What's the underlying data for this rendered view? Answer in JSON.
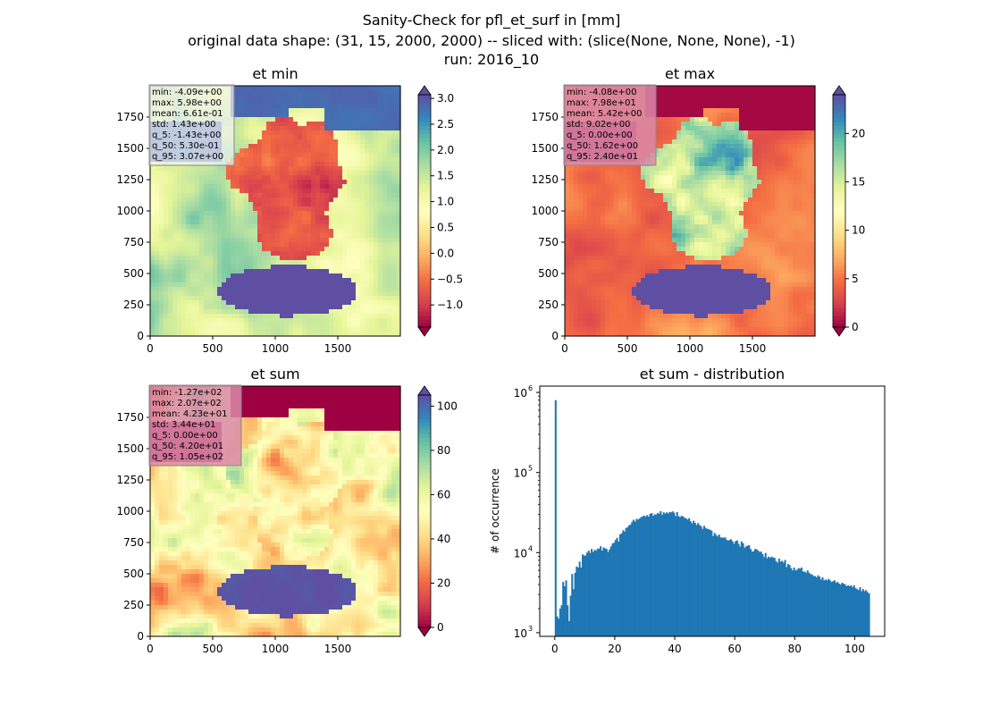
{
  "figure": {
    "title_lines": [
      "Sanity-Check for pfl_et_surf in [mm]",
      "original data shape: (31, 15, 2000, 2000) -- sliced with: (slice(None, None, None), -1)",
      "run: 2016_10"
    ]
  },
  "colors": {
    "spectral": [
      "#9e0142",
      "#d53e4f",
      "#f46d43",
      "#fdae61",
      "#fee08b",
      "#ffffbf",
      "#e6f598",
      "#abdda4",
      "#66c2a5",
      "#3288bd",
      "#5e4fa2"
    ],
    "hist_bar": "#1f77b4",
    "stats_box_min": "#f4f4f4",
    "stats_box_pink": "#d98aa8"
  },
  "chart_data": [
    {
      "type": "heatmap",
      "title": "et min",
      "x_ticks": [
        0,
        500,
        1000,
        1500
      ],
      "y_ticks": [
        0,
        250,
        500,
        750,
        1000,
        1250,
        1500,
        1750
      ],
      "xlim": [
        0,
        2000
      ],
      "ylim": [
        0,
        2000
      ],
      "colorbar": {
        "vmin": -1.43,
        "vmax": 3.07,
        "ticks": [
          -1.0,
          -0.5,
          0.0,
          0.5,
          1.0,
          1.5,
          2.0,
          2.5,
          3.0
        ],
        "tick_labels": [
          "−1.0",
          "−0.5",
          "0.0",
          "0.5",
          "1.0",
          "1.5",
          "2.0",
          "2.5",
          "3.0"
        ],
        "extend": "both"
      },
      "stats": [
        "min: -4.09e+00",
        "max: 5.98e+00",
        "mean: 6.61e-01",
        "std: 1.43e+00",
        "q_5: -1.43e+00",
        "q_50: 5.30e-01",
        "q_95: 3.07e+00"
      ]
    },
    {
      "type": "heatmap",
      "title": "et max",
      "x_ticks": [
        0,
        500,
        1000,
        1500
      ],
      "y_ticks": [
        0,
        250,
        500,
        750,
        1000,
        1250,
        1500,
        1750
      ],
      "xlim": [
        0,
        2000
      ],
      "ylim": [
        0,
        2000
      ],
      "colorbar": {
        "vmin": 0,
        "vmax": 24,
        "ticks": [
          0,
          5,
          10,
          15,
          20
        ],
        "tick_labels": [
          "0",
          "5",
          "10",
          "15",
          "20"
        ],
        "extend": "both"
      },
      "stats": [
        "min: -4.08e+00",
        "max: 7.98e+01",
        "mean: 5.42e+00",
        "std: 9.02e+00",
        "q_5: 0.00e+00",
        "q_50: 1.62e+00",
        "q_95: 2.40e+01"
      ]
    },
    {
      "type": "heatmap",
      "title": "et sum",
      "x_ticks": [
        0,
        500,
        1000,
        1500
      ],
      "y_ticks": [
        0,
        250,
        500,
        750,
        1000,
        1250,
        1500,
        1750
      ],
      "xlim": [
        0,
        2000
      ],
      "ylim": [
        0,
        2000
      ],
      "colorbar": {
        "vmin": 0,
        "vmax": 105,
        "ticks": [
          0,
          20,
          40,
          60,
          80,
          100
        ],
        "tick_labels": [
          "0",
          "20",
          "40",
          "60",
          "80",
          "100"
        ],
        "extend": "both"
      },
      "stats": [
        "min: -1.27e+02",
        "max: 2.07e+02",
        "mean: 4.23e+01",
        "std: 3.44e+01",
        "q_5: 0.00e+00",
        "q_50: 4.20e+01",
        "q_95: 1.05e+02"
      ]
    },
    {
      "type": "bar",
      "title": "et sum - distribution",
      "ylabel": "# of occurrence",
      "yscale": "log",
      "xlim": [
        -5,
        110
      ],
      "ylim": [
        900,
        1200000
      ],
      "x_ticks": [
        0,
        20,
        40,
        60,
        80,
        100
      ],
      "y_ticks": [
        1000,
        10000,
        100000,
        1000000
      ],
      "y_tick_labels": [
        {
          "base": "10",
          "exp": "3"
        },
        {
          "base": "10",
          "exp": "4"
        },
        {
          "base": "10",
          "exp": "5"
        },
        {
          "base": "10",
          "exp": "6"
        }
      ],
      "bin_width": 0.525,
      "bins_x": [
        0.0,
        0.5,
        1.0,
        1.5,
        2.0,
        2.5,
        3.0,
        3.5,
        4.0,
        4.5,
        5.0,
        5.5,
        6.0,
        6.5,
        7.0,
        7.5,
        8.0,
        8.5,
        9.0,
        9.5,
        10.0,
        10.5,
        11.0,
        11.5,
        12.0,
        12.5,
        13.0,
        13.5,
        14.0,
        14.5,
        15.0,
        15.5,
        16.0,
        16.5,
        17.0,
        17.5,
        18.0,
        18.5,
        19.0,
        19.5,
        20.0,
        20.5,
        21.0,
        21.5,
        22.0,
        22.5,
        23.0,
        23.5,
        24.0,
        24.5,
        25.0,
        25.5,
        26.0,
        26.5,
        27.0,
        27.5,
        28.0,
        28.5,
        29.0,
        29.5,
        30.0,
        30.5,
        31.0,
        31.5,
        32.0,
        32.5,
        33.0,
        33.5,
        34.0,
        34.5,
        35.0,
        35.5,
        36.0,
        36.5,
        37.0,
        37.5,
        38.0,
        38.5,
        39.0,
        39.5,
        40.0,
        40.5,
        41.0,
        41.5,
        42.0,
        42.5,
        43.0,
        43.5,
        44.0,
        44.5,
        45.0,
        45.5,
        46.0,
        46.5,
        47.0,
        47.5,
        48.0,
        48.5,
        49.0,
        49.5,
        50.0,
        50.5,
        51.0,
        51.5,
        52.0,
        52.5,
        53.0,
        53.5,
        54.0,
        54.5,
        55.0,
        55.5,
        56.0,
        56.5,
        57.0,
        57.5,
        58.0,
        58.5,
        59.0,
        59.5,
        60.0,
        60.5,
        61.0,
        61.5,
        62.0,
        62.5,
        63.0,
        63.5,
        64.0,
        64.5,
        65.0,
        65.5,
        66.0,
        66.5,
        67.0,
        67.5,
        68.0,
        68.5,
        69.0,
        69.5,
        70.0,
        70.5,
        71.0,
        71.5,
        72.0,
        72.5,
        73.0,
        73.5,
        74.0,
        74.5,
        75.0,
        75.5,
        76.0,
        76.5,
        77.0,
        77.5,
        78.0,
        78.5,
        79.0,
        79.5,
        80.0,
        80.5,
        81.0,
        81.5,
        82.0,
        82.5,
        83.0,
        83.5,
        84.0,
        84.5,
        85.0,
        85.5,
        86.0,
        86.5,
        87.0,
        87.5,
        88.0,
        88.5,
        89.0,
        89.5,
        90.0,
        90.5,
        91.0,
        91.5,
        92.0,
        92.5,
        93.0,
        93.5,
        94.0,
        94.5,
        95.0,
        95.5,
        96.0,
        96.5,
        97.0,
        97.5,
        98.0,
        98.5,
        99.0,
        99.5,
        100.0,
        100.5,
        101.0,
        101.5,
        102.0,
        102.5,
        103.0,
        103.5,
        104.0,
        104.5
      ],
      "counts": [
        800000,
        1600,
        1500,
        2000,
        2200,
        4300,
        3800,
        4500,
        2200,
        1400,
        2900,
        5400,
        3500,
        5600,
        6700,
        6500,
        7700,
        6500,
        9500,
        9200,
        9200,
        10000,
        10600,
        9900,
        11100,
        10200,
        10800,
        10600,
        11200,
        11200,
        12000,
        10600,
        11600,
        11300,
        11100,
        10200,
        11000,
        12000,
        13000,
        13300,
        14400,
        15300,
        13700,
        16900,
        17400,
        19000,
        18300,
        20300,
        20800,
        21900,
        22500,
        24300,
        25700,
        24500,
        26400,
        25800,
        26700,
        27700,
        28300,
        28900,
        28100,
        29400,
        28100,
        30400,
        31200,
        28800,
        30100,
        29700,
        31300,
        30600,
        32900,
        29600,
        31900,
        30700,
        31800,
        30800,
        32200,
        31800,
        32700,
        31500,
        28500,
        32100,
        28500,
        27800,
        28800,
        28200,
        27200,
        26700,
        25800,
        26900,
        24600,
        23200,
        25000,
        23500,
        22100,
        23400,
        22100,
        21300,
        19800,
        21600,
        20400,
        19800,
        19700,
        19200,
        18800,
        16100,
        17600,
        16600,
        15900,
        16800,
        15500,
        15400,
        15400,
        15500,
        14500,
        14100,
        14400,
        14700,
        13800,
        12900,
        13900,
        14200,
        12900,
        11900,
        13800,
        13100,
        11500,
        12000,
        12200,
        12400,
        11100,
        10300,
        10400,
        11100,
        11000,
        10600,
        10200,
        10300,
        9600,
        8800,
        9900,
        8500,
        8900,
        8600,
        8900,
        8700,
        8600,
        7800,
        7500,
        8400,
        7700,
        7900,
        7500,
        8100,
        6600,
        7200,
        7000,
        6400,
        6000,
        6500,
        6000,
        6100,
        6400,
        6300,
        6500,
        5800,
        5800,
        5600,
        6000,
        5600,
        5400,
        5300,
        5100,
        5100,
        4900,
        5200,
        5000,
        4600,
        4900,
        4500,
        4600,
        4500,
        4700,
        4500,
        4300,
        4400,
        4500,
        4200,
        4300,
        4100,
        4000,
        4200,
        4100,
        4000,
        3800,
        3900,
        3800,
        3900,
        3700,
        3900,
        3600,
        3500,
        3400,
        3700,
        3300,
        3500,
        3300,
        3400,
        3200,
        3100,
        3000,
        3300,
        3000,
        3100
      ]
    }
  ]
}
